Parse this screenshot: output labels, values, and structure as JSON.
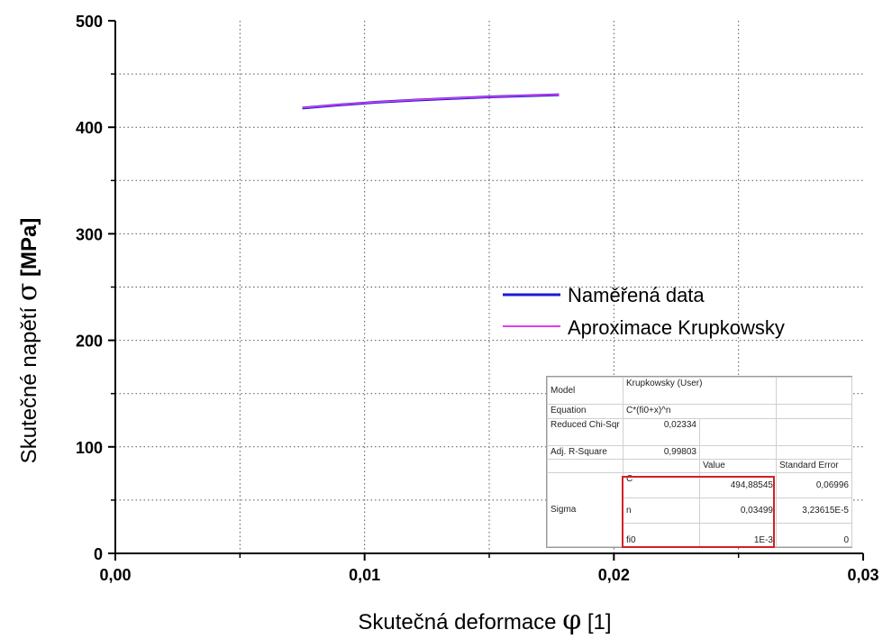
{
  "chart_data": {
    "type": "line",
    "xlabel_prefix": "Skutečná deformace ",
    "xlabel_symbol": "φ",
    "xlabel_suffix": "  [1]",
    "ylabel_prefix": "Skutečné napětí ",
    "ylabel_symbol": "σ",
    "ylabel_suffix": " [MPa]",
    "xlim": [
      0,
      0.03
    ],
    "ylim": [
      0,
      500
    ],
    "x_ticks": [
      0,
      0.01,
      0.02,
      0.03
    ],
    "x_tick_labels": [
      "0,00",
      "0,01",
      "0,02",
      "0,03"
    ],
    "y_ticks": [
      0,
      100,
      200,
      300,
      400,
      500
    ],
    "y_tick_labels": [
      "0",
      "100",
      "200",
      "300",
      "400",
      "500"
    ],
    "grid": true,
    "grid_style": "dotted",
    "legend_position": "right-middle",
    "series": [
      {
        "name": "Naměřená data",
        "color": "#1a1ad6",
        "x": [
          0.0075,
          0.009,
          0.0105,
          0.012,
          0.0135,
          0.015,
          0.0165,
          0.0178
        ],
        "y": [
          418,
          421,
          423.5,
          425.5,
          427,
          428.5,
          429.5,
          430.5
        ]
      },
      {
        "name": "Aproximace Krupkowsky",
        "color": "#e23cf0",
        "x": [
          0.0075,
          0.009,
          0.0105,
          0.012,
          0.0135,
          0.015,
          0.0165,
          0.0178
        ],
        "y": [
          418.3,
          421.2,
          423.6,
          425.6,
          427.2,
          428.6,
          429.8,
          430.7
        ]
      }
    ]
  },
  "fit_table": {
    "model_label": "Model",
    "model_value": "Krupkowsky (User)",
    "equation_label": "Equation",
    "equation_value": "C*(fi0+x)^n",
    "chisqr_label": "Reduced Chi-Sqr",
    "chisqr_value": "0,02334",
    "r2_label": "Adj. R-Square",
    "r2_value": "0,99803",
    "value_header": "Value",
    "error_header": "Standard Error",
    "sigma_label": "Sigma",
    "params": [
      {
        "name": "C",
        "value": "494,88545",
        "error": "0,06996"
      },
      {
        "name": "n",
        "value": "0,03499",
        "error": "3,23615E-5"
      },
      {
        "name": "fi0",
        "value": "1E-3",
        "error": "0"
      }
    ],
    "highlight_color": "#d41f26"
  }
}
